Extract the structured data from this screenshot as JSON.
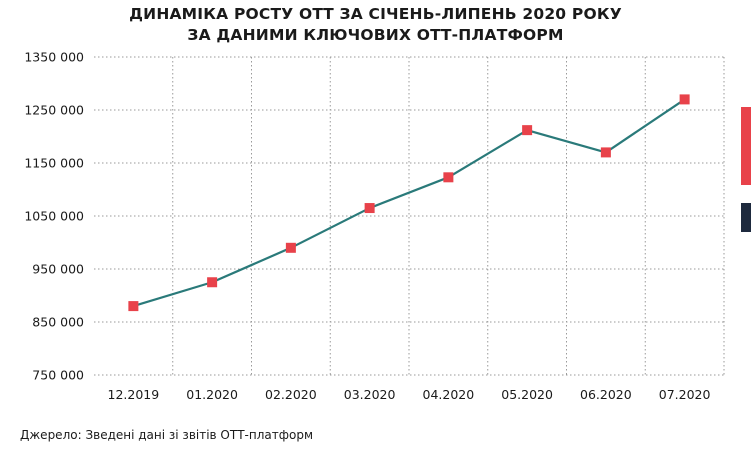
{
  "chart_data": {
    "type": "line",
    "title_lines": [
      "ДИНАМІКА РОСТУ ОТТ ЗА СІЧЕНЬ-ЛИПЕНЬ 2020 РОКУ",
      "ЗА ДАНИМИ КЛЮЧОВИХ ОТТ-ПЛАТФОРМ"
    ],
    "categories": [
      "12.2019",
      "01.2020",
      "02.2020",
      "03.2020",
      "04.2020",
      "05.2020",
      "06.2020",
      "07.2020"
    ],
    "series": [
      {
        "values": [
          880000,
          925000,
          990000,
          1065000,
          1123000,
          1212000,
          1170000,
          1270000
        ]
      }
    ],
    "ylim": [
      750000,
      1350000
    ],
    "yticks": [
      750000,
      850000,
      950000,
      1050000,
      1150000,
      1250000,
      1350000
    ],
    "ytick_labels": [
      "750 000",
      "850 000",
      "950 000",
      "1050 000",
      "1150 000",
      "1250 000",
      "1350 000"
    ],
    "grid": "dotted",
    "legend": "none"
  },
  "source_note": "Джерело: Зведені дані зі звітів ОТТ-платформ",
  "colors": {
    "line": "#2a7a7a",
    "marker": "#e8424a",
    "grid": "#9a9a9a",
    "text": "#1a1a1a",
    "accent_red": "#e8424a",
    "accent_navy": "#1e2a3e"
  }
}
